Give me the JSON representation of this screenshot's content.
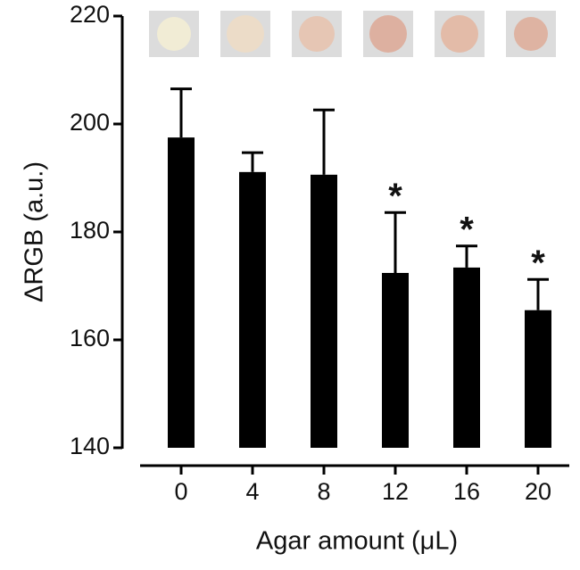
{
  "chart_data": {
    "type": "bar",
    "x_label": "Agar amount (μL)",
    "y_label": "ΔRGB (a.u.)",
    "categories": [
      "0",
      "4",
      "8",
      "12",
      "16",
      "20"
    ],
    "values": [
      197.5,
      191.1,
      190.6,
      172.4,
      173.4,
      165.5
    ],
    "errors": [
      9,
      3.6,
      12,
      11.2,
      4,
      5.7
    ],
    "annotations": [
      null,
      null,
      null,
      "*",
      "*",
      "*"
    ],
    "color": "#000000",
    "ylim": [
      140,
      220
    ],
    "yticks": [
      140,
      160,
      180,
      200,
      220
    ]
  }
}
